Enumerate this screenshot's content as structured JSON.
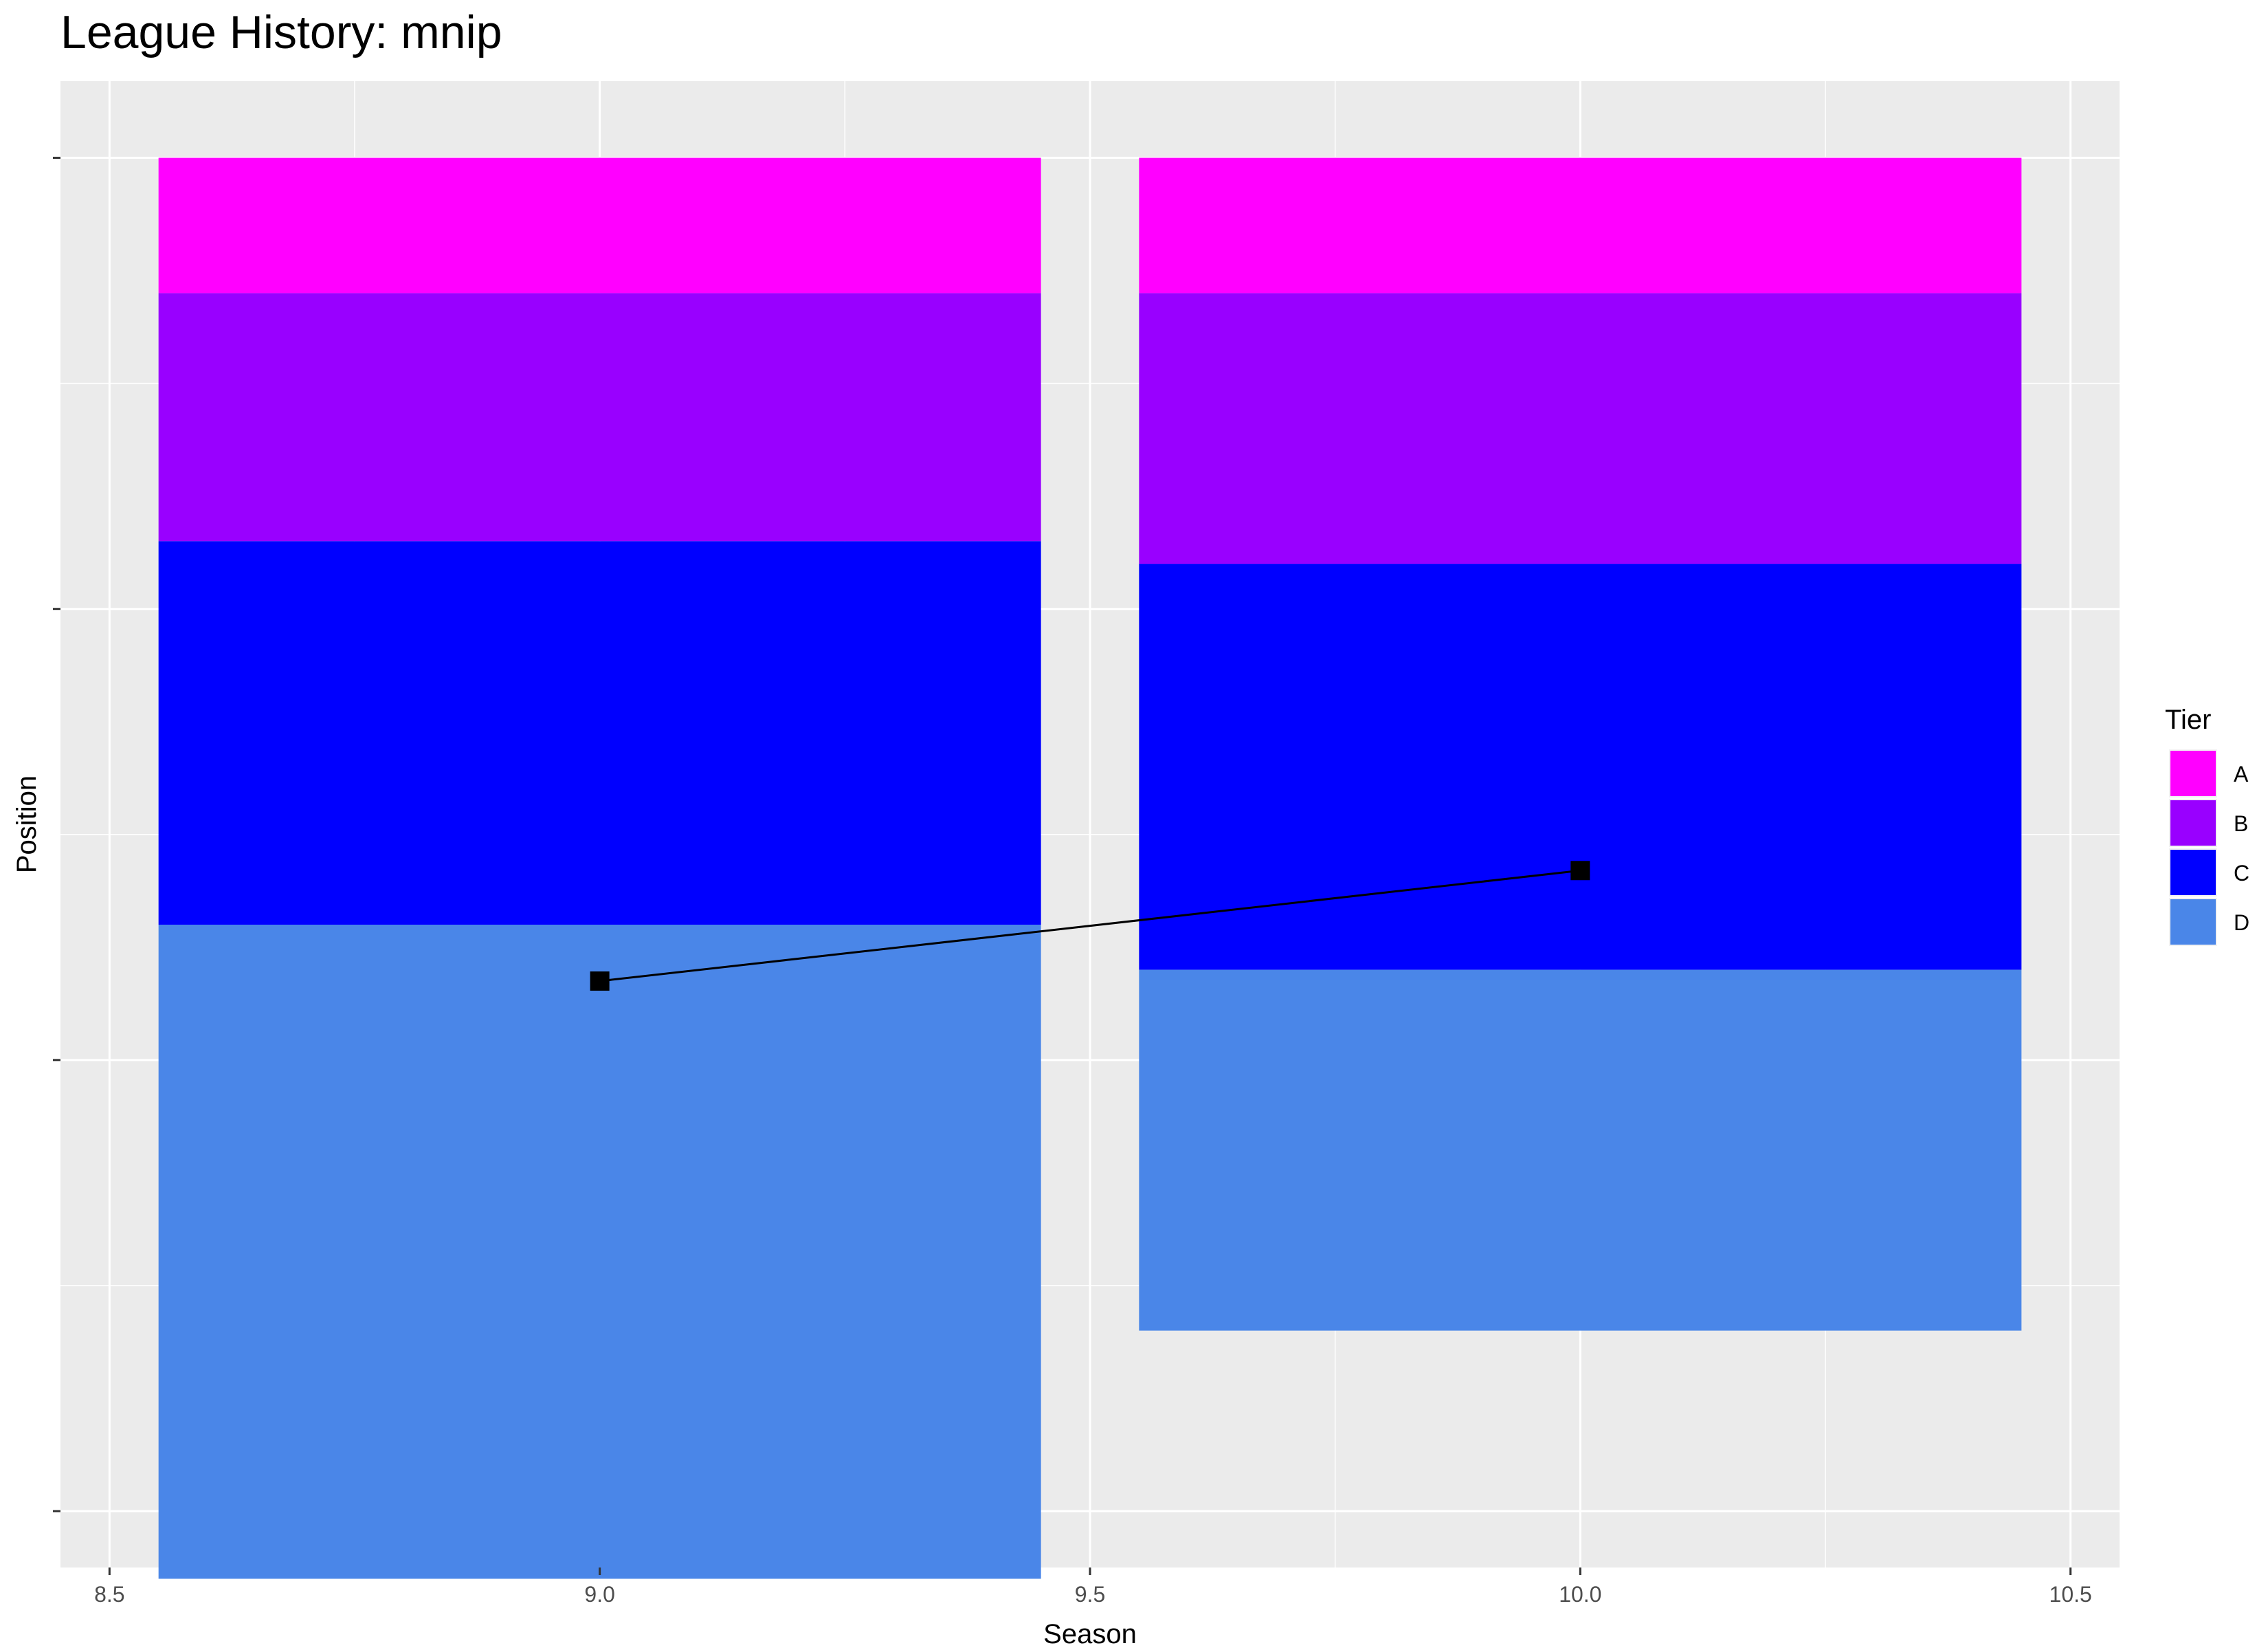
{
  "chart_data": {
    "type": "bar",
    "title": "League History: mnip",
    "xlabel": "Season",
    "ylabel": "Position",
    "xlim": [
      8.45,
      10.55
    ],
    "x_ticks": [
      8.5,
      9.0,
      9.5,
      10.0,
      10.5
    ],
    "x_tick_labels": [
      "8.5",
      "9.0",
      "9.5",
      "10.0",
      "10.5"
    ],
    "ylim": [
      -3.4,
      62.5
    ],
    "y_ticks": [
      0,
      20,
      40,
      60
    ],
    "y_tick_labels": [
      "",
      "",
      "",
      ""
    ],
    "bar_width": 0.9,
    "stacked": true,
    "reversed_y": true,
    "legend": {
      "title": "Tier",
      "position": "right"
    },
    "series": [
      {
        "name": "A",
        "color": "#FF00FF",
        "values": [
          6,
          6
        ]
      },
      {
        "name": "B",
        "color": "#9900FF",
        "values": [
          11,
          12
        ]
      },
      {
        "name": "C",
        "color": "#0000FF",
        "values": [
          17,
          18
        ]
      },
      {
        "name": "D",
        "color": "#4A86E8",
        "values": [
          29,
          16
        ]
      }
    ],
    "categories": [
      9.0,
      10.0
    ],
    "line": {
      "color": "#000000",
      "x": [
        9.0,
        10.0
      ],
      "y": [
        36.5,
        31.6
      ]
    },
    "grid": true,
    "panel_background": "#EBEBEB"
  }
}
